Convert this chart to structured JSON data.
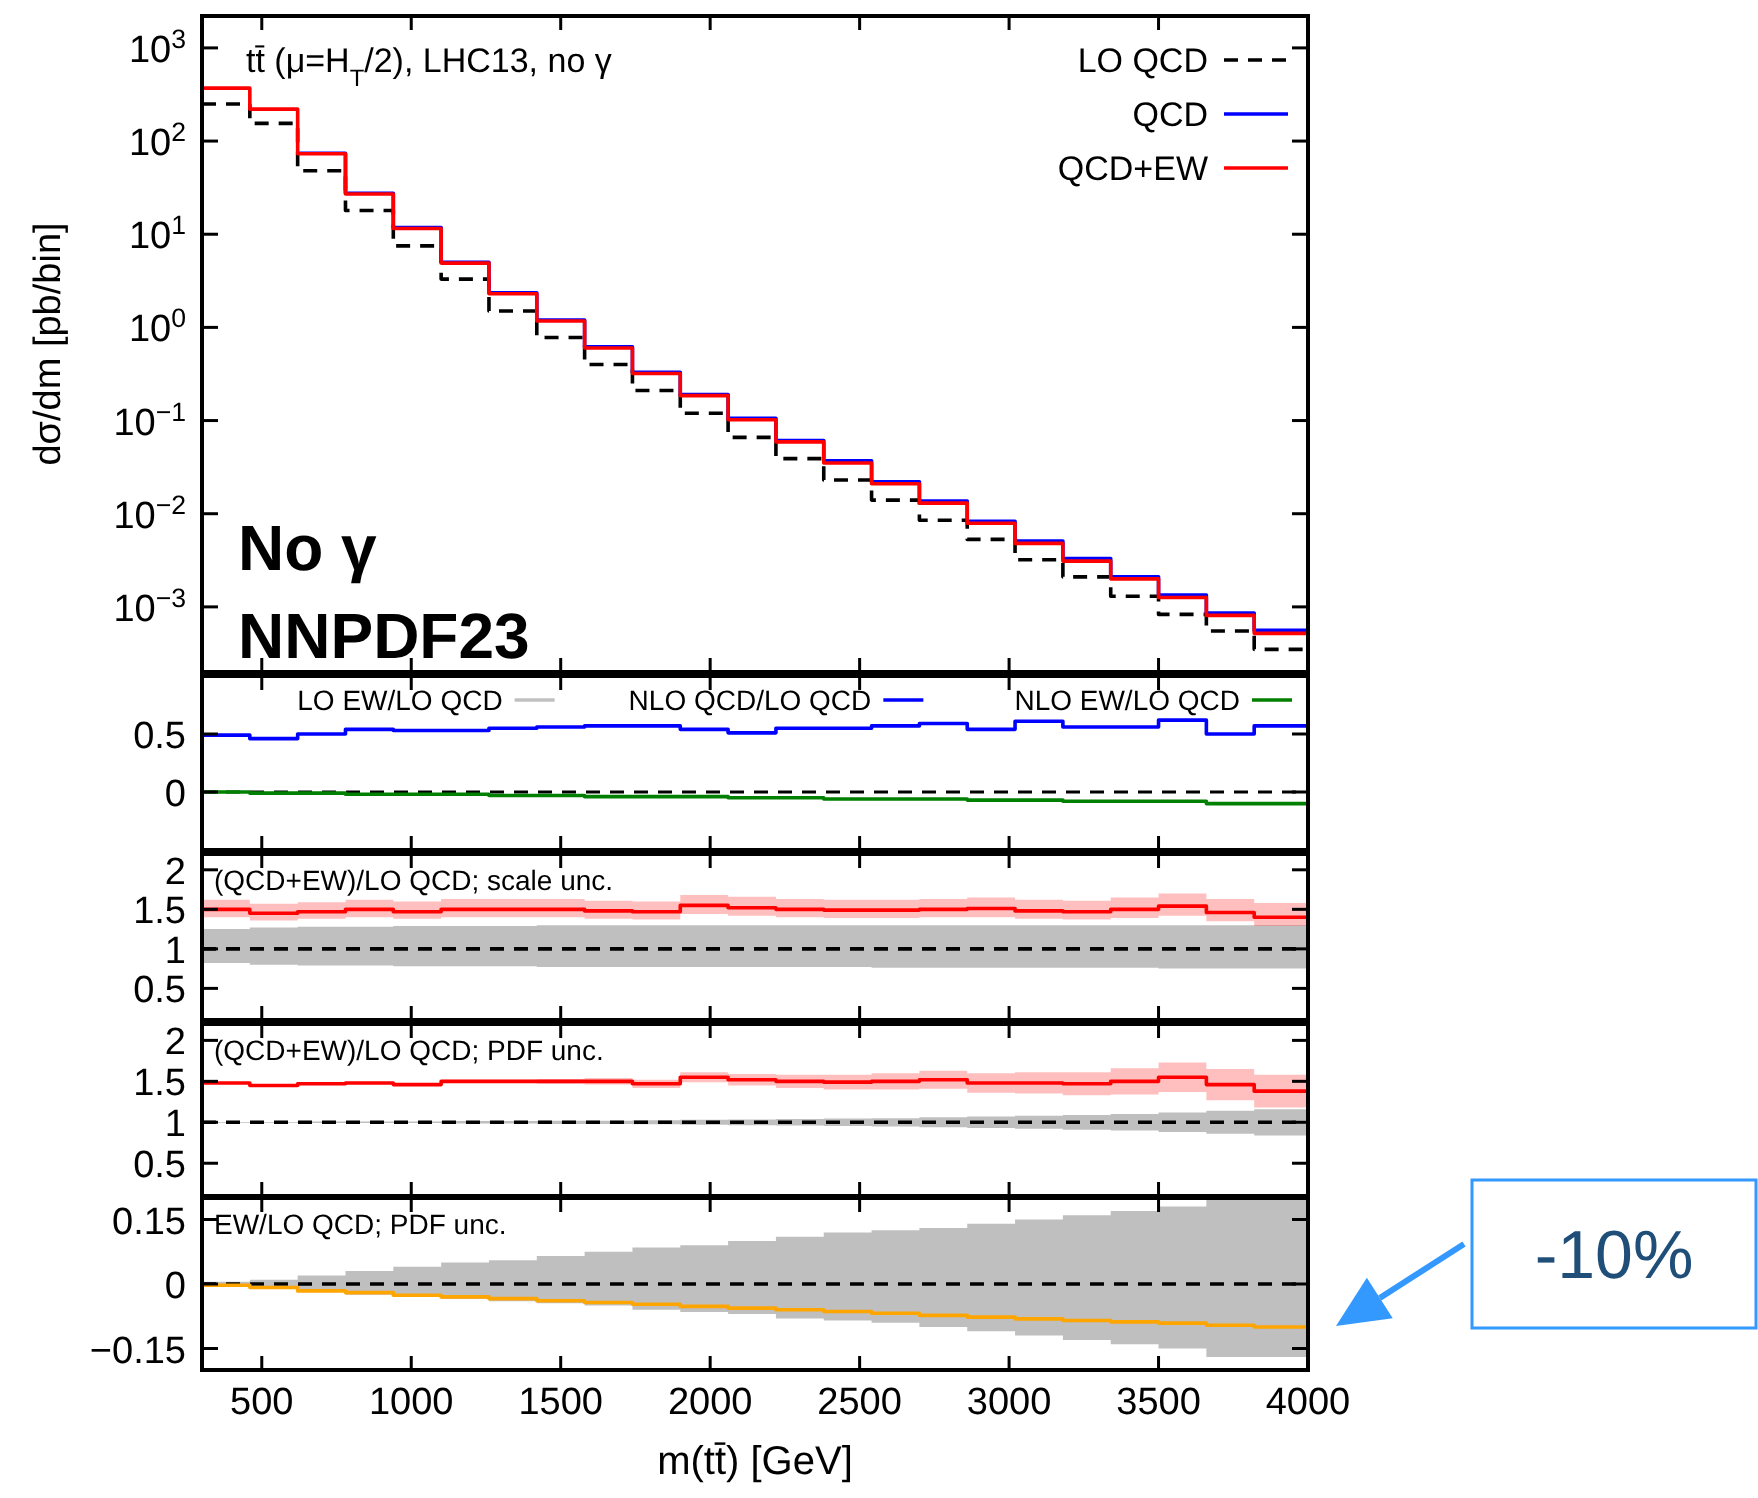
{
  "chart_data": [
    {
      "type": "step",
      "log": "y",
      "ylabel": "dσ/dm [pb/bin]",
      "xlim": [
        300,
        4000
      ],
      "xticks": [
        500,
        1000,
        1500,
        2000,
        2500,
        3000,
        3500,
        4000
      ],
      "ylim": [
        0.0002,
        2200
      ],
      "yticks": [
        {
          "value": 0.001,
          "label": "10$^{−3}$"
        },
        {
          "value": 0.01,
          "label": "10$^{−2}$"
        },
        {
          "value": 0.1,
          "label": "10$^{−1}$"
        },
        {
          "value": 1,
          "label": "10$^{0}$"
        },
        {
          "value": 10,
          "label": "10$^{1}$"
        },
        {
          "value": 100,
          "label": "10$^{2}$"
        },
        {
          "value": 1000,
          "label": "10$^{3}$"
        }
      ],
      "tick_labels": "y",
      "legend": "top right",
      "x": [
        300,
        460,
        620,
        780,
        940,
        1100,
        1260,
        1420,
        1580,
        1740,
        1900,
        2060,
        2220,
        2380,
        2540,
        2700,
        2860,
        3020,
        3180,
        3340,
        3500,
        3660,
        3820,
        4000
      ],
      "annotations": [
        "tt̄ (μ=H$_{T}$/2), LHC13, no γ",
        "No γ",
        "NNPDF23"
      ],
      "series": [
        {
          "name": "LO QCD",
          "color": "#000000",
          "line_style": "dashed",
          "values": [
            250,
            155,
            48,
            18,
            7.5,
            3.3,
            1.5,
            0.78,
            0.4,
            0.21,
            0.12,
            0.066,
            0.039,
            0.023,
            0.014,
            0.0085,
            0.0053,
            0.0032,
            0.0021,
            0.0013,
            0.00083,
            0.00055,
            0.00035,
            0.00035
          ]
        },
        {
          "name": "QCD",
          "color": "#0000ff",
          "values": [
            null,
            null,
            74,
            27.5,
            11.8,
            5.0,
            2.35,
            1.2,
            0.62,
            0.33,
            0.19,
            0.106,
            0.061,
            0.037,
            0.022,
            0.0137,
            0.0083,
            0.0051,
            0.0033,
            0.0021,
            0.00134,
            0.00086,
            0.00056,
            0.00056
          ]
        },
        {
          "name": "QCD+EW",
          "color": "#ff0000",
          "values": [
            370,
            220,
            73,
            27,
            11.5,
            4.9,
            2.3,
            1.17,
            0.6,
            0.32,
            0.185,
            0.102,
            0.059,
            0.035,
            0.021,
            0.013,
            0.0079,
            0.0048,
            0.0031,
            0.002,
            0.00126,
            0.00081,
            0.00052,
            0.00052
          ]
        }
      ]
    },
    {
      "type": "step",
      "xlim": [
        300,
        4000
      ],
      "xticks": [
        500,
        1000,
        1500,
        2000,
        2500,
        3000,
        3500,
        4000
      ],
      "ylim": [
        -0.5,
        1
      ],
      "yticks": [
        0,
        0.5
      ],
      "tick_labels": "y",
      "legend": "top",
      "x": [
        300,
        460,
        620,
        780,
        940,
        1100,
        1260,
        1420,
        1580,
        1740,
        1900,
        2060,
        2220,
        2380,
        2540,
        2700,
        2860,
        3020,
        3180,
        3340,
        3500,
        3660,
        3820,
        4000
      ],
      "ref_lines": [
        {
          "axis": "y",
          "value": 0,
          "color": "#000000",
          "line_style": "dashed"
        }
      ],
      "series": [
        {
          "name": "LO EW/LO QCD",
          "color": "#c0c0c0",
          "values": [
            null,
            null,
            null,
            null,
            null,
            null,
            null,
            null,
            null,
            null,
            null,
            null,
            null,
            null,
            null,
            null,
            null,
            null,
            null,
            null,
            null,
            null,
            null,
            null
          ]
        },
        {
          "name": "NLO QCD/LO QCD",
          "color": "#0000ff",
          "values": [
            0.49,
            0.46,
            0.5,
            0.54,
            0.53,
            0.53,
            0.55,
            0.56,
            0.57,
            0.57,
            0.54,
            0.51,
            0.55,
            0.55,
            0.57,
            0.59,
            0.54,
            0.61,
            0.56,
            0.56,
            0.62,
            0.5,
            0.57,
            0.57
          ]
        },
        {
          "name": "NLO EW/LO QCD",
          "color": "#008000",
          "values": [
            0,
            -0.01,
            -0.01,
            -0.02,
            -0.02,
            -0.02,
            -0.03,
            -0.03,
            -0.04,
            -0.04,
            -0.04,
            -0.05,
            -0.05,
            -0.06,
            -0.06,
            -0.06,
            -0.07,
            -0.07,
            -0.08,
            -0.08,
            -0.08,
            -0.1,
            -0.1,
            -0.1
          ]
        }
      ]
    },
    {
      "type": "step",
      "xlim": [
        300,
        4000
      ],
      "xticks": [
        500,
        1000,
        1500,
        2000,
        2500,
        3000,
        3500,
        4000
      ],
      "ylim": [
        0.1,
        2.2
      ],
      "yticks": [
        0.5,
        1,
        1.5,
        2
      ],
      "tick_labels": "y",
      "x": [
        300,
        460,
        620,
        780,
        940,
        1100,
        1260,
        1420,
        1580,
        1740,
        1900,
        2060,
        2220,
        2380,
        2540,
        2700,
        2860,
        3020,
        3180,
        3340,
        3500,
        3660,
        3820,
        4000
      ],
      "annotations": [
        "(QCD+EW)/LO QCD; scale unc."
      ],
      "series": [
        {
          "color": "#000000",
          "line_style": "dashed",
          "values": [
            1,
            1,
            1,
            1,
            1,
            1,
            1,
            1,
            1,
            1,
            1,
            1,
            1,
            1,
            1,
            1,
            1,
            1,
            1,
            1,
            1,
            1,
            1,
            1
          ],
          "lower": [
            0.82,
            0.8,
            0.79,
            0.79,
            0.78,
            0.78,
            0.78,
            0.77,
            0.77,
            0.77,
            0.77,
            0.77,
            0.77,
            0.77,
            0.76,
            0.76,
            0.76,
            0.76,
            0.76,
            0.76,
            0.75,
            0.75,
            0.75,
            0.75
          ],
          "upper": [
            1.25,
            1.27,
            1.28,
            1.28,
            1.29,
            1.29,
            1.29,
            1.3,
            1.3,
            1.3,
            1.3,
            1.3,
            1.3,
            1.3,
            1.3,
            1.3,
            1.3,
            1.3,
            1.3,
            1.3,
            1.3,
            1.3,
            1.3,
            1.3
          ]
        },
        {
          "color": "#ff0000",
          "values": [
            1.5,
            1.45,
            1.47,
            1.5,
            1.47,
            1.5,
            1.5,
            1.5,
            1.48,
            1.47,
            1.55,
            1.52,
            1.5,
            1.49,
            1.49,
            1.5,
            1.51,
            1.48,
            1.47,
            1.5,
            1.54,
            1.46,
            1.4,
            1.4
          ],
          "lower": [
            1.4,
            1.36,
            1.38,
            1.4,
            1.38,
            1.4,
            1.4,
            1.4,
            1.38,
            1.37,
            1.44,
            1.42,
            1.4,
            1.39,
            1.39,
            1.4,
            1.4,
            1.38,
            1.37,
            1.39,
            1.42,
            1.35,
            1.29,
            1.29
          ],
          "upper": [
            1.62,
            1.57,
            1.59,
            1.62,
            1.6,
            1.63,
            1.63,
            1.63,
            1.61,
            1.6,
            1.68,
            1.66,
            1.63,
            1.62,
            1.62,
            1.63,
            1.65,
            1.62,
            1.61,
            1.65,
            1.7,
            1.63,
            1.58,
            1.58
          ]
        }
      ]
    },
    {
      "type": "step",
      "xlim": [
        300,
        4000
      ],
      "xticks": [
        500,
        1000,
        1500,
        2000,
        2500,
        3000,
        3500,
        4000
      ],
      "ylim": [
        0.1,
        2.2
      ],
      "yticks": [
        0.5,
        1,
        1.5,
        2
      ],
      "tick_labels": "y",
      "x": [
        300,
        460,
        620,
        780,
        940,
        1100,
        1260,
        1420,
        1580,
        1740,
        1900,
        2060,
        2220,
        2380,
        2540,
        2700,
        2860,
        3020,
        3180,
        3340,
        3500,
        3660,
        3820,
        4000
      ],
      "annotations": [
        "(QCD+EW)/LO QCD; PDF unc."
      ],
      "series": [
        {
          "color": "#000000",
          "line_style": "dashed",
          "values": [
            1,
            1,
            1,
            1,
            1,
            1,
            1,
            1,
            1,
            1,
            1,
            1,
            1,
            1,
            1,
            1,
            1,
            1,
            1,
            1,
            1,
            1,
            1,
            1
          ],
          "lower": [
            0.995,
            0.995,
            0.99,
            0.99,
            0.99,
            0.985,
            0.985,
            0.98,
            0.98,
            0.975,
            0.97,
            0.965,
            0.96,
            0.955,
            0.95,
            0.94,
            0.93,
            0.92,
            0.91,
            0.9,
            0.88,
            0.86,
            0.84,
            0.84
          ],
          "upper": [
            1.005,
            1.005,
            1.01,
            1.01,
            1.01,
            1.015,
            1.015,
            1.02,
            1.02,
            1.025,
            1.03,
            1.035,
            1.04,
            1.045,
            1.05,
            1.06,
            1.07,
            1.08,
            1.09,
            1.1,
            1.12,
            1.14,
            1.16,
            1.16
          ]
        },
        {
          "color": "#ff0000",
          "values": [
            1.48,
            1.45,
            1.47,
            1.48,
            1.46,
            1.5,
            1.5,
            1.5,
            1.5,
            1.47,
            1.55,
            1.52,
            1.5,
            1.49,
            1.5,
            1.52,
            1.48,
            1.48,
            1.47,
            1.5,
            1.55,
            1.46,
            1.38,
            1.38
          ],
          "lower": [
            1.47,
            1.44,
            1.46,
            1.47,
            1.45,
            1.48,
            1.48,
            1.47,
            1.46,
            1.42,
            1.49,
            1.45,
            1.42,
            1.4,
            1.4,
            1.41,
            1.36,
            1.35,
            1.33,
            1.34,
            1.37,
            1.27,
            1.18,
            1.18
          ],
          "upper": [
            1.49,
            1.46,
            1.48,
            1.49,
            1.47,
            1.52,
            1.52,
            1.53,
            1.54,
            1.52,
            1.61,
            1.59,
            1.58,
            1.58,
            1.6,
            1.63,
            1.6,
            1.61,
            1.61,
            1.66,
            1.73,
            1.65,
            1.58,
            1.58
          ]
        }
      ]
    },
    {
      "type": "step",
      "xlabel": "m(tt̄) [GeV]",
      "xlim": [
        300,
        4000
      ],
      "xticks": [
        500,
        1000,
        1500,
        2000,
        2500,
        3000,
        3500,
        4000
      ],
      "ylim": [
        -0.2,
        0.2
      ],
      "yticks": [
        {
          "value": -0.15,
          "label": "−0.15"
        },
        0,
        0.15
      ],
      "x": [
        300,
        460,
        620,
        780,
        940,
        1100,
        1260,
        1420,
        1580,
        1740,
        1900,
        2060,
        2220,
        2380,
        2540,
        2700,
        2860,
        3020,
        3180,
        3340,
        3500,
        3660,
        3820,
        4000
      ],
      "annotations": [
        "EW/LO QCD; PDF unc.",
        "-10%"
      ],
      "series": [
        {
          "color": "#000000",
          "line_style": "dashed",
          "values": [
            0,
            0,
            0,
            0,
            0,
            0,
            0,
            0,
            0,
            0,
            0,
            0,
            0,
            0,
            0,
            0,
            0,
            0,
            0,
            0,
            0,
            0,
            0,
            0
          ],
          "lower": [
            -0.005,
            -0.01,
            -0.018,
            -0.025,
            -0.03,
            -0.035,
            -0.04,
            -0.045,
            -0.05,
            -0.06,
            -0.065,
            -0.07,
            -0.08,
            -0.085,
            -0.09,
            -0.1,
            -0.11,
            -0.12,
            -0.13,
            -0.14,
            -0.15,
            -0.17,
            -0.17,
            -0.17
          ],
          "upper": [
            0.005,
            0.01,
            0.02,
            0.03,
            0.04,
            0.05,
            0.055,
            0.065,
            0.075,
            0.085,
            0.09,
            0.1,
            0.11,
            0.12,
            0.125,
            0.13,
            0.14,
            0.15,
            0.16,
            0.17,
            0.18,
            0.2,
            0.2,
            0.2
          ]
        },
        {
          "color": "#ffa500",
          "values": [
            -0.003,
            -0.008,
            -0.016,
            -0.02,
            -0.026,
            -0.03,
            -0.034,
            -0.039,
            -0.043,
            -0.047,
            -0.052,
            -0.056,
            -0.06,
            -0.064,
            -0.068,
            -0.073,
            -0.077,
            -0.081,
            -0.085,
            -0.088,
            -0.091,
            -0.096,
            -0.1,
            -0.1
          ]
        }
      ]
    }
  ]
}
